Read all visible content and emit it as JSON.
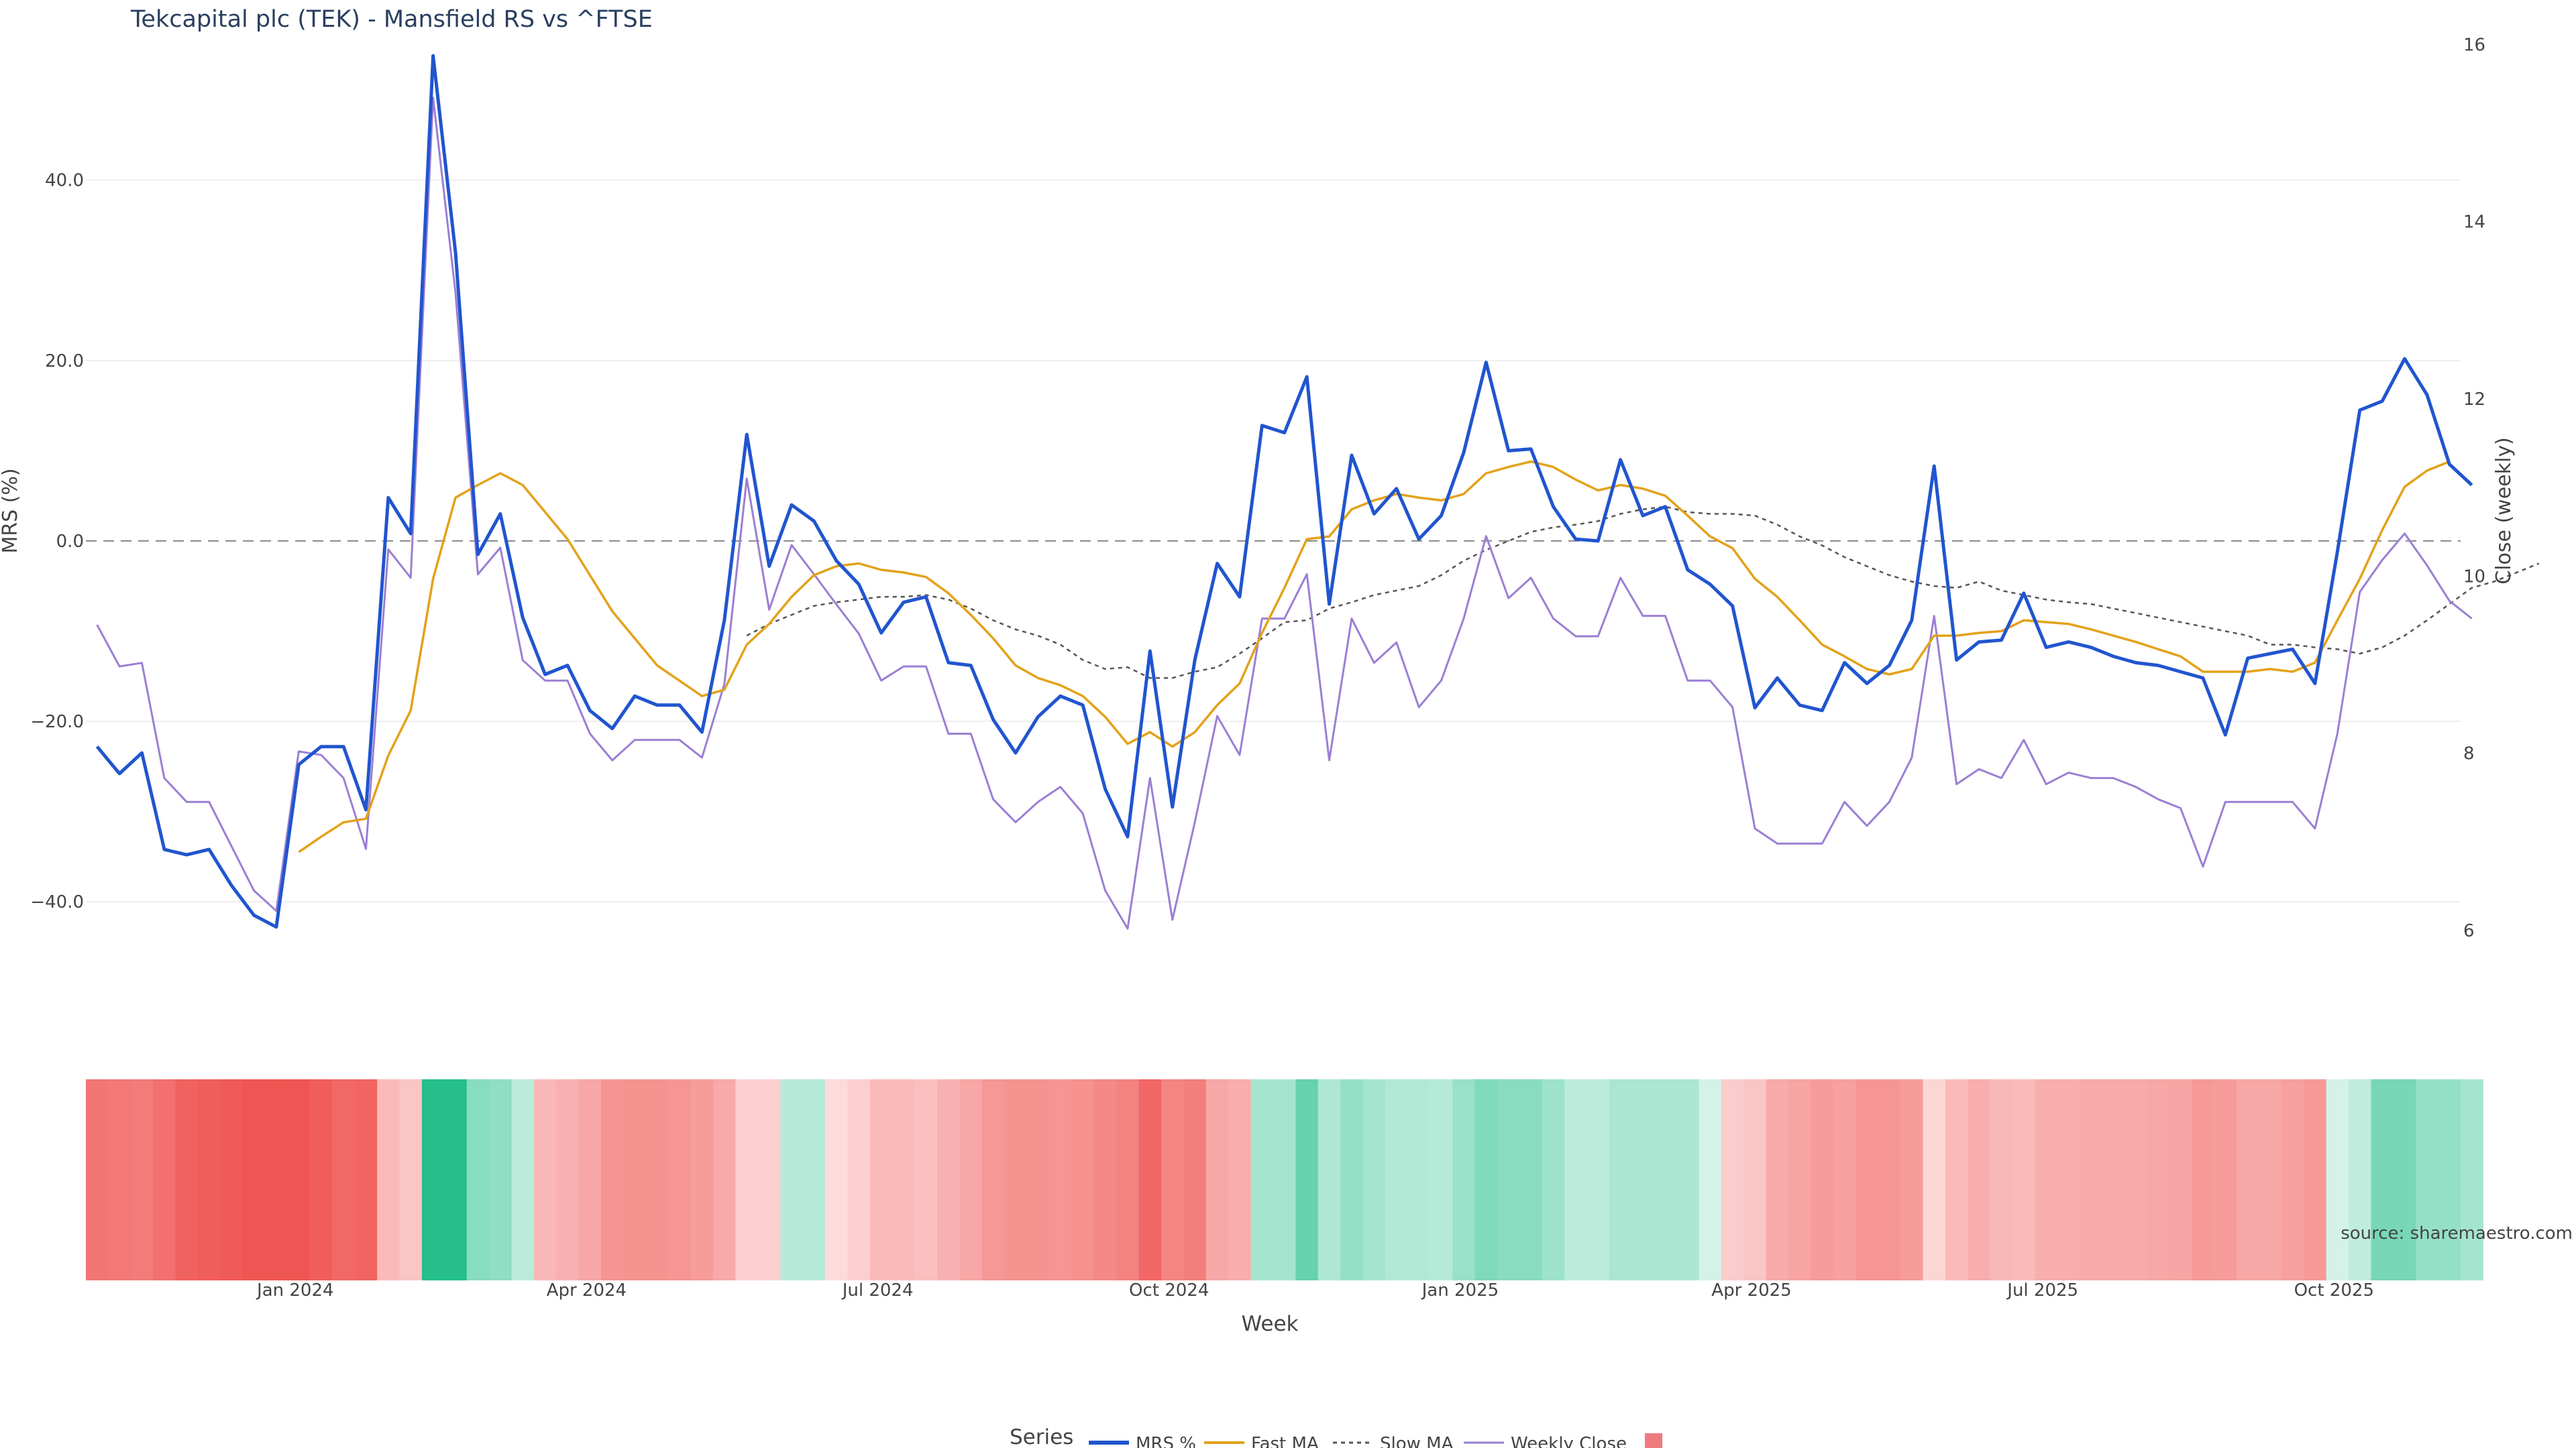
{
  "chart_data": {
    "type": "line",
    "title": "Tekcapital plc (TEK) - Mansfield RS vs ^FTSE",
    "xlabel": "Week",
    "ylabel_left": "MRS (%)",
    "ylabel_right": "Close (weekly)",
    "ylim_left": [
      -53,
      57
    ],
    "ylim_right": [
      5,
      16.2
    ],
    "left_ticks": [
      40,
      20,
      0,
      -20,
      -40
    ],
    "left_tick_labels": [
      "40.0",
      "20.0",
      "0.0",
      "−20.0",
      "−40.0"
    ],
    "right_ticks": [
      16,
      14,
      12,
      10,
      8,
      6
    ],
    "right_tick_labels": [
      "16",
      "14",
      "12",
      "10",
      "8",
      "6"
    ],
    "x_tick_labels": [
      "Jan 2024",
      "Apr 2024",
      "Jul 2024",
      "Oct 2024",
      "Jan 2025",
      "Apr 2025",
      "Jul 2025",
      "Oct 2025"
    ],
    "x_tick_weeks": [
      9.35,
      22.35,
      35.35,
      48.35,
      61.35,
      74.35,
      87.35,
      100.35
    ],
    "num_weeks": 106,
    "legend_title": "Series",
    "legend": [
      "MRS %",
      "Fast MA",
      "Slow MA",
      "Weekly Close",
      ""
    ],
    "source_label": "source: sharemaestro.com",
    "colors": {
      "mrs": "#2155cf",
      "fast": "#e3a21a",
      "slow": "#555555",
      "close": "#9b7fd4",
      "zero": "#888888",
      "neg": "#ef5350",
      "pos": "#26bf8c",
      "legend_swatch": "#ee7a7e"
    },
    "series": [
      {
        "name": "MRS %",
        "start": 0,
        "values": [
          -22.8,
          -25.8,
          -23.5,
          -34.2,
          -34.8,
          -34.2,
          -38.2,
          -41.5,
          -42.8,
          -24.8,
          -22.8,
          -22.8,
          -29.8,
          4.8,
          0.8,
          53.8,
          32.0,
          -1.5,
          3.0,
          -8.5,
          -14.8,
          -13.8,
          -18.8,
          -20.8,
          -17.2,
          -18.2,
          -18.2,
          -21.2,
          -8.8,
          11.8,
          -2.8,
          4.0,
          2.2,
          -2.2,
          -4.8,
          -10.2,
          -6.8,
          -6.2,
          -13.5,
          -13.8,
          -19.8,
          -23.5,
          -19.5,
          -17.2,
          -18.2,
          -27.5,
          -32.8,
          -12.2,
          -29.5,
          -13.2,
          -2.5,
          -6.2,
          12.8,
          12.0,
          18.2,
          -7.0,
          9.5,
          3.0,
          5.8,
          0.2,
          2.8,
          9.8,
          19.8,
          10.0,
          10.2,
          3.8,
          0.2,
          0.0,
          9.0,
          2.8,
          3.8,
          -3.2,
          -4.8,
          -7.2,
          -18.5,
          -15.2,
          -18.2,
          -18.8,
          -13.5,
          -15.8,
          -13.8,
          -8.8,
          8.3,
          -13.2,
          -11.2,
          -11.0,
          -5.8,
          -11.8,
          -11.2,
          -11.8,
          -12.8,
          -13.5,
          -13.8,
          -14.5,
          -15.2,
          -21.5,
          -13.0,
          -12.5,
          -12.0,
          -15.8,
          -1.2,
          14.5,
          15.5,
          20.2,
          16.2,
          8.5,
          6.2
        ]
      },
      {
        "name": "Fast MA",
        "start": 9,
        "values": [
          -34.5,
          -32.8,
          -31.2,
          -30.8,
          -23.8,
          -18.8,
          -4.2,
          4.8,
          6.2,
          7.5,
          6.2,
          3.2,
          0.2,
          -3.8,
          -7.8,
          -10.8,
          -13.8,
          -15.5,
          -17.2,
          -16.5,
          -11.5,
          -9.2,
          -6.2,
          -3.8,
          -2.8,
          -2.5,
          -3.2,
          -3.5,
          -4.0,
          -5.8,
          -8.2,
          -10.8,
          -13.8,
          -15.2,
          -16.0,
          -17.2,
          -19.5,
          -22.5,
          -21.2,
          -22.8,
          -21.2,
          -18.2,
          -15.8,
          -10.2,
          -5.2,
          0.2,
          0.5,
          3.5,
          4.5,
          5.2,
          4.8,
          4.5,
          5.2,
          7.5,
          8.2,
          8.8,
          8.2,
          6.8,
          5.6,
          6.2,
          5.8,
          5.0,
          2.8,
          0.5,
          -0.8,
          -4.2,
          -6.2,
          -8.8,
          -11.5,
          -12.8,
          -14.2,
          -14.8,
          -14.2,
          -10.5,
          -10.5,
          -10.2,
          -10.0,
          -8.8,
          -9.0,
          -9.2,
          -9.8,
          -10.5,
          -11.2,
          -12.0,
          -12.8,
          -14.5,
          -14.5,
          -14.5,
          -14.2,
          -14.5,
          -13.5,
          -8.8,
          -4.2,
          1.2,
          6.0,
          7.8,
          8.8
        ]
      },
      {
        "name": "Slow MA",
        "start": 29,
        "values": [
          -10.5,
          -9.2,
          -8.2,
          -7.2,
          -6.8,
          -6.5,
          -6.2,
          -6.2,
          -6.0,
          -6.5,
          -7.5,
          -8.8,
          -9.8,
          -10.5,
          -11.5,
          -13.2,
          -14.2,
          -14.0,
          -15.2,
          -15.2,
          -14.5,
          -14.0,
          -12.5,
          -10.8,
          -9.0,
          -8.8,
          -7.5,
          -6.8,
          -6.0,
          -5.5,
          -5.0,
          -3.8,
          -2.2,
          -1.0,
          0.0,
          1.0,
          1.5,
          1.8,
          2.2,
          3.0,
          3.5,
          3.8,
          3.2,
          3.0,
          3.0,
          2.8,
          1.8,
          0.5,
          -0.5,
          -1.8,
          -2.8,
          -3.8,
          -4.5,
          -5.0,
          -5.2,
          -4.5,
          -5.5,
          -6.0,
          -6.5,
          -6.8,
          -7.0,
          -7.5,
          -8.0,
          -8.5,
          -9.0,
          -9.5,
          -10.0,
          -10.5,
          -11.5,
          -11.5,
          -11.8,
          -12.0,
          -12.5,
          -11.8,
          -10.5,
          -8.8,
          -7.0,
          -5.2,
          -4.5,
          -3.5,
          -2.5
        ]
      },
      {
        "name": "Weekly Close",
        "start": 0,
        "axis": "right",
        "values": [
          9.45,
          8.98,
          9.02,
          7.72,
          7.45,
          7.45,
          6.95,
          6.45,
          6.22,
          8.02,
          7.98,
          7.72,
          6.92,
          10.3,
          9.98,
          15.4,
          13.2,
          10.02,
          10.32,
          9.05,
          8.82,
          8.82,
          8.22,
          7.92,
          8.15,
          8.15,
          8.15,
          7.95,
          8.78,
          11.1,
          9.62,
          10.35,
          10.02,
          9.68,
          9.35,
          8.82,
          8.98,
          8.98,
          8.22,
          8.22,
          7.48,
          7.22,
          7.45,
          7.62,
          7.32,
          6.45,
          6.02,
          7.72,
          6.12,
          7.22,
          8.42,
          7.98,
          9.52,
          9.52,
          10.02,
          7.92,
          9.52,
          9.02,
          9.25,
          8.52,
          8.82,
          9.52,
          10.45,
          9.75,
          9.98,
          9.52,
          9.32,
          9.32,
          9.98,
          9.55,
          9.55,
          8.82,
          8.82,
          8.52,
          7.15,
          6.98,
          6.98,
          6.98,
          7.45,
          7.18,
          7.45,
          7.95,
          9.55,
          7.65,
          7.82,
          7.72,
          8.15,
          7.65,
          7.78,
          7.72,
          7.72,
          7.62,
          7.48,
          7.38,
          6.72,
          7.45,
          7.45,
          7.45,
          7.45,
          7.15,
          8.22,
          9.82,
          10.18,
          10.48,
          10.12,
          9.72,
          9.52
        ]
      }
    ],
    "heat_strip": {
      "note": "weekly heat cells colored by MRS sign and magnitude",
      "values": [
        -34.5,
        -33.8,
        -33.0,
        -36.5,
        -40.5,
        -41.8,
        -43.0,
        -44.0,
        -44.5,
        -44.0,
        -42.0,
        -38.5,
        -40.0,
        -14.0,
        -11.0,
        50.0,
        50.0,
        22.0,
        20.0,
        10.0,
        -15.0,
        -17.0,
        -20.0,
        -25.5,
        -26.0,
        -26.0,
        -25.0,
        -23.0,
        -19.0,
        -8.0,
        -8.0,
        11.0,
        11.0,
        -4.5,
        -8.0,
        -14.0,
        -14.0,
        -12.5,
        -17.0,
        -20.0,
        -24.5,
        -26.0,
        -26.0,
        -25.0,
        -26.5,
        -29.0,
        -31.0,
        -39.0,
        -30.0,
        -32.0,
        -20.0,
        -18.0,
        15.0,
        15.0,
        30.0,
        13.0,
        19.0,
        15.0,
        12.0,
        12.0,
        11.0,
        18.0,
        24.0,
        22.0,
        22.0,
        17.0,
        10.0,
        10.0,
        14.0,
        14.0,
        14.0,
        14.0,
        4.0,
        -9.0,
        -11.0,
        -19.0,
        -21.0,
        -23.0,
        -22.0,
        -25.0,
        -25.0,
        -23.0,
        -6.0,
        -14.0,
        -18.0,
        -15.0,
        -14.0,
        -18.0,
        -18.0,
        -19.0,
        -19.0,
        -19.0,
        -20.0,
        -20.5,
        -24.0,
        -23.0,
        -20.0,
        -20.0,
        -22.0,
        -24.0,
        4.0,
        9.0,
        26.0,
        26.0,
        19.0,
        19.0,
        15.0
      ]
    }
  }
}
